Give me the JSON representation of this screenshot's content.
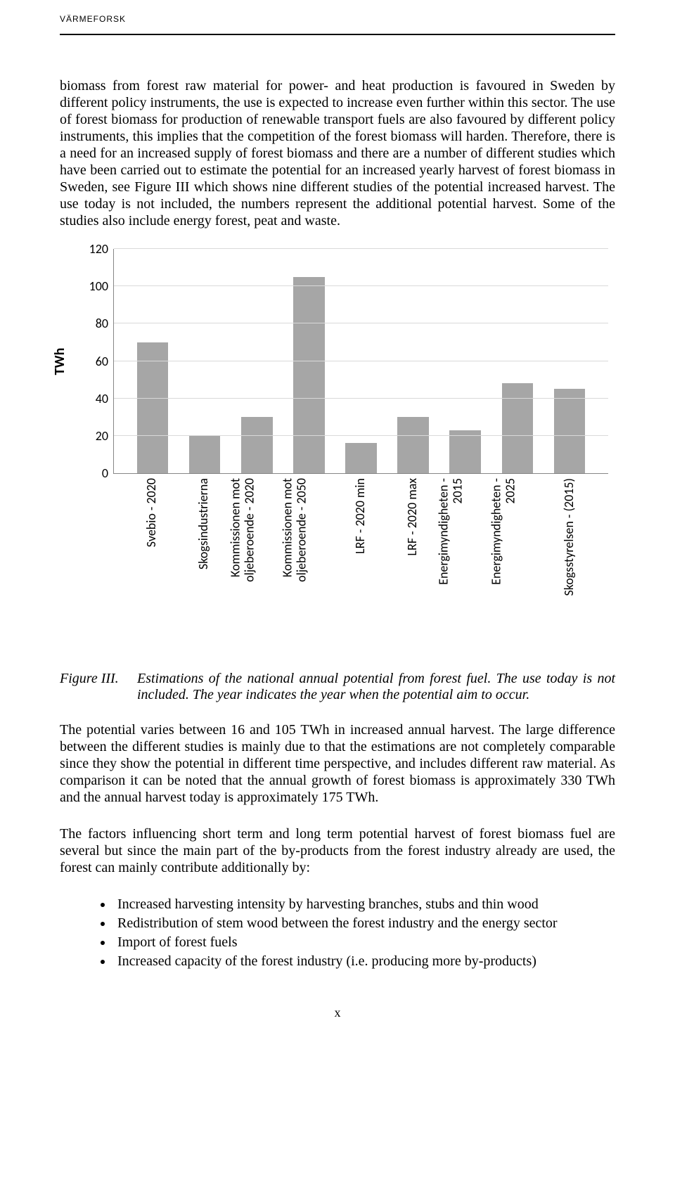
{
  "header": "VÄRMEFORSK",
  "para1": "biomass from forest raw material for power- and heat production is favoured in Sweden by different policy instruments, the use is expected to increase even further within this sector. The use of forest biomass for production of renewable transport fuels are also favoured by different policy instruments, this implies that the competition of the forest biomass will harden. Therefore, there is a need for an increased supply of forest biomass and there are a number of different studies which have been carried out to estimate the potential for an increased yearly harvest of forest biomass in Sweden, see Figure III which shows nine different studies of the potential increased harvest. The use today is not included, the numbers represent the additional potential harvest. Some of the studies also include energy forest, peat and waste.",
  "chart": {
    "ylabel": "TWh",
    "ymax": 120,
    "ytick_step": 20,
    "ticks": [
      0,
      20,
      40,
      60,
      80,
      100,
      120
    ],
    "bar_color": "#a6a6a6",
    "grid_color": "#d9d9d9",
    "axis_color": "#868686",
    "categories": [
      {
        "label": "Svebio - 2020",
        "value": 70
      },
      {
        "label": "Skogsindustrierna",
        "value": 20
      },
      {
        "label": "Kommissionen mot\noljeberoende - 2020",
        "value": 30
      },
      {
        "label": "Kommissionen mot\noljeberoende - 2050",
        "value": 105
      },
      {
        "label": "LRF - 2020 min",
        "value": 16
      },
      {
        "label": "LRF - 2020 max",
        "value": 30
      },
      {
        "label": "Energimyndigheten -\n2015",
        "value": 23
      },
      {
        "label": "Energimyndigheten -\n2025",
        "value": 48
      },
      {
        "label": "Skogsstyrelsen - (2015)",
        "value": 45
      }
    ]
  },
  "caption": {
    "label": "Figure III.",
    "text": "Estimations of the national annual potential from forest fuel. The use today is not included. The year indicates the year when the potential aim to occur."
  },
  "para2": "The potential varies between 16 and 105 TWh in increased annual harvest. The large difference between the different studies is mainly due to that the estimations are not completely comparable since they show the potential in different time perspective, and includes different raw material. As comparison it can be noted that the annual growth of forest biomass is approximately 330 TWh and the annual harvest today is approximately 175 TWh.",
  "para3": "The factors influencing short term and long term potential harvest of forest biomass fuel are several but since the main part of the by-products from the forest industry already are used, the forest can mainly contribute additionally by:",
  "bullets": [
    "Increased harvesting intensity by harvesting branches, stubs and thin wood",
    "Redistribution of stem wood between the forest industry and the energy sector",
    "Import of forest fuels",
    "Increased capacity of the forest industry (i.e. producing more by-products)"
  ],
  "pageNum": "x"
}
